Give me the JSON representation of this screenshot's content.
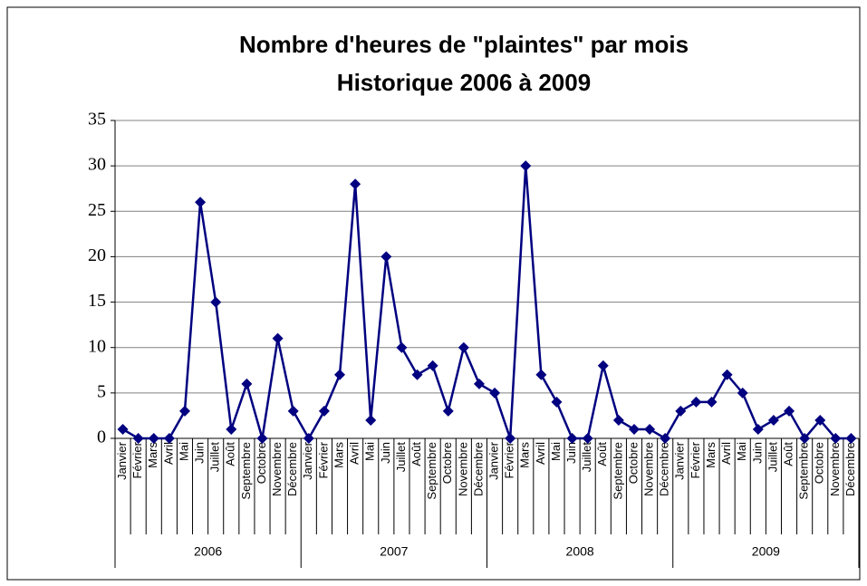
{
  "chart_data": {
    "type": "line",
    "title": [
      "Nombre d'heures de \"plaintes\" par mois",
      "Historique 2006 à 2009"
    ],
    "categories": [
      "Janvier",
      "Février",
      "Mars",
      "Avril",
      "Mai",
      "Juin",
      "Juillet",
      "Août",
      "Septembre",
      "Octobre",
      "Novembre",
      "Décembre",
      "Janvier",
      "Février",
      "Mars",
      "Avril",
      "Mai",
      "Juin",
      "Juillet",
      "Août",
      "Septembre",
      "Octobre",
      "Novembre",
      "Décembre",
      "Janvier",
      "Février",
      "Mars",
      "Avril",
      "Mai",
      "Juin",
      "Juillet",
      "Août",
      "Septembre",
      "Octobre",
      "Novembre",
      "Décembre",
      "Janvier",
      "Février",
      "Mars",
      "Avril",
      "Mai",
      "Juin",
      "Juillet",
      "Août",
      "Septembre",
      "Octobre",
      "Novembre",
      "Décembre"
    ],
    "groups": [
      "2006",
      "2007",
      "2008",
      "2009"
    ],
    "color": "#000080",
    "values": [
      1,
      0,
      0,
      0,
      3,
      26,
      15,
      1,
      6,
      0,
      11,
      3,
      0,
      3,
      7,
      28,
      2,
      20,
      10,
      7,
      8,
      3,
      10,
      6,
      5,
      0,
      30,
      7,
      4,
      0,
      0,
      8,
      2,
      1,
      1,
      0,
      3,
      4,
      4,
      7,
      5,
      1,
      2,
      3,
      0,
      2,
      0,
      0
    ],
    "ylim": [
      0,
      35
    ],
    "yticks": [
      0,
      5,
      10,
      15,
      20,
      25,
      30,
      35
    ],
    "grid": true
  }
}
